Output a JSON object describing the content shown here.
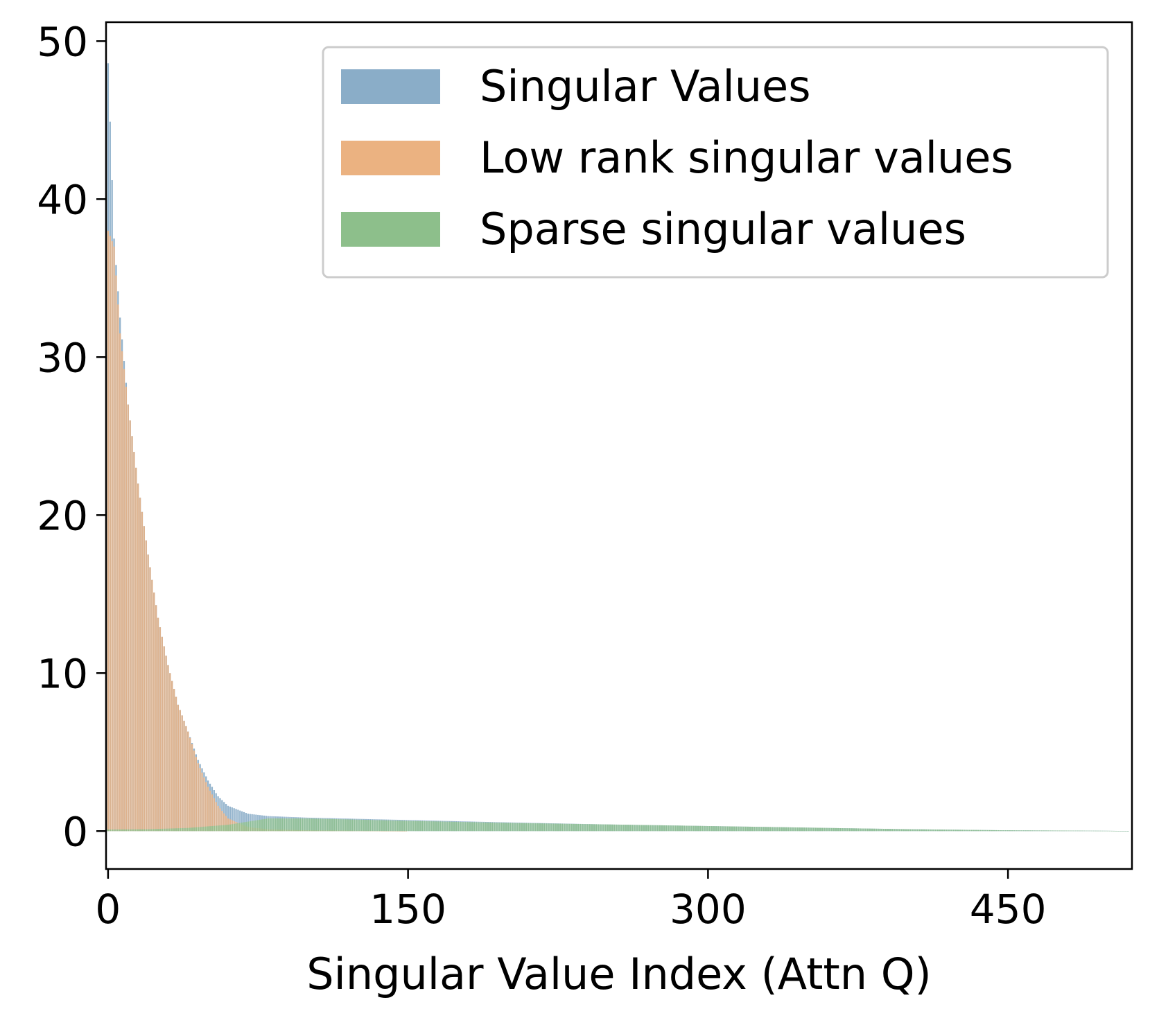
{
  "chart_data": {
    "type": "bar",
    "title": "",
    "xlabel": "Singular Value Index (Attn Q)",
    "ylabel": "",
    "xlim": [
      -1,
      512
    ],
    "ylim": [
      -2.4,
      51.2
    ],
    "x_ticks": [
      {
        "value": 0,
        "label": "0"
      },
      {
        "value": 150,
        "label": "150"
      },
      {
        "value": 300,
        "label": "300"
      },
      {
        "value": 450,
        "label": "450"
      }
    ],
    "y_ticks": [
      {
        "value": 0,
        "label": "0"
      },
      {
        "value": 10,
        "label": "10"
      },
      {
        "value": 20,
        "label": "20"
      },
      {
        "value": 30,
        "label": "30"
      },
      {
        "value": 40,
        "label": "40"
      },
      {
        "value": 50,
        "label": "50"
      }
    ],
    "grid": false,
    "legend": {
      "placement": "top-right",
      "entries": [
        {
          "name": "Singular Values",
          "color": "#8aadc8"
        },
        {
          "name": "Low rank singular values",
          "color": "#ebb281"
        },
        {
          "name": "Sparse singular values",
          "color": "#8dbf8b"
        }
      ]
    },
    "series": [
      {
        "name": "Singular Values",
        "color": "#8aadc8",
        "x": [
          0,
          3,
          6,
          10,
          15,
          20,
          25,
          30,
          35,
          40,
          45,
          50,
          55,
          60,
          70,
          80,
          100,
          150,
          200,
          250,
          300,
          350,
          400,
          450,
          500,
          511
        ],
        "values": [
          48.6,
          37.5,
          32.5,
          27.0,
          22.0,
          17.5,
          13.5,
          10.5,
          8.0,
          6.3,
          4.5,
          3.2,
          2.2,
          1.6,
          1.1,
          0.95,
          0.85,
          0.7,
          0.55,
          0.42,
          0.32,
          0.22,
          0.12,
          0.05,
          0.02,
          0.0
        ]
      },
      {
        "name": "Low rank singular values",
        "color": "#ebb281",
        "x": [
          0,
          3,
          6,
          10,
          15,
          20,
          25,
          30,
          35,
          40,
          45,
          50,
          55,
          60,
          70,
          80,
          100,
          150
        ],
        "values": [
          38.0,
          37.0,
          31.5,
          27.0,
          22.0,
          17.5,
          13.5,
          10.5,
          8.0,
          6.3,
          4.3,
          2.8,
          1.6,
          0.8,
          0.25,
          0.12,
          0.05,
          0.0
        ]
      },
      {
        "name": "Sparse singular values",
        "color": "#8dbf8b",
        "x": [
          0,
          20,
          40,
          60,
          70,
          80,
          100,
          150,
          200,
          250,
          300,
          350,
          400,
          450,
          500,
          511
        ],
        "values": [
          0.1,
          0.12,
          0.2,
          0.4,
          0.6,
          0.8,
          0.8,
          0.65,
          0.52,
          0.42,
          0.32,
          0.22,
          0.12,
          0.05,
          0.02,
          0.0
        ]
      }
    ]
  }
}
